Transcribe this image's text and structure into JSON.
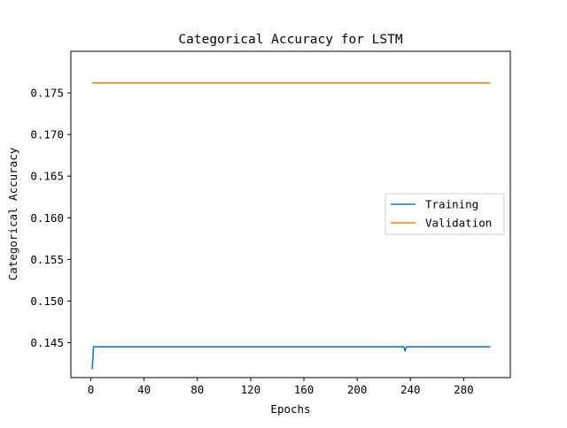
{
  "chart_data": {
    "type": "line",
    "title": "Categorical Accuracy for LSTM",
    "xlabel": "Epochs",
    "ylabel": "Categorical Accuracy",
    "xlim": [
      -15,
      315
    ],
    "ylim": [
      0.1408,
      0.18
    ],
    "xticks": [
      0,
      40,
      80,
      120,
      160,
      200,
      240,
      280
    ],
    "yticks": [
      0.145,
      0.15,
      0.155,
      0.16,
      0.165,
      0.17,
      0.175
    ],
    "ytick_labels": [
      "0.145",
      "0.150",
      "0.155",
      "0.160",
      "0.165",
      "0.170",
      "0.175"
    ],
    "grid": false,
    "legend_position": "center-right",
    "series": [
      {
        "name": "Training",
        "color": "#1f77b4",
        "points": [
          [
            1,
            0.1418
          ],
          [
            2,
            0.1445
          ],
          [
            235,
            0.1445
          ],
          [
            236,
            0.144
          ],
          [
            237,
            0.1445
          ],
          [
            300,
            0.1445
          ]
        ]
      },
      {
        "name": "Validation",
        "color": "#ff7f0e",
        "points": [
          [
            1,
            0.1762
          ],
          [
            300,
            0.1762
          ]
        ]
      }
    ]
  }
}
